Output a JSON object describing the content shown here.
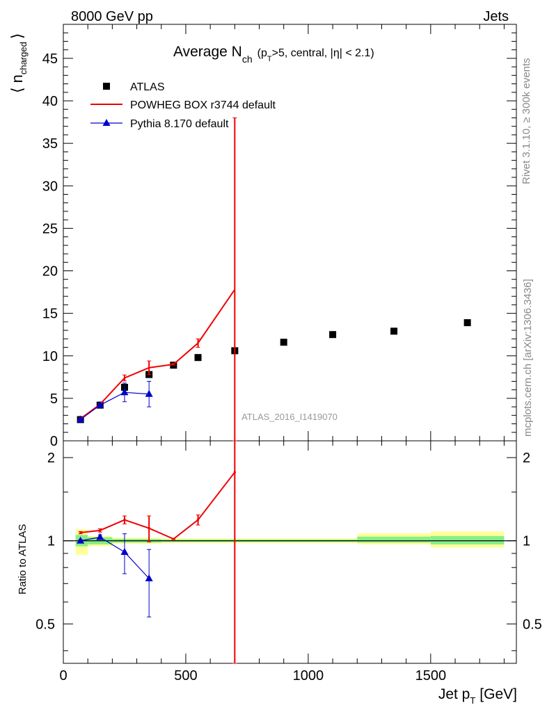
{
  "header": {
    "left": "8000 GeV pp",
    "right": "Jets"
  },
  "side_labels": {
    "rivet": "Rivet 3.1.10, ≥ 300k events",
    "mcplots": "mcplots.cern.ch [arXiv:1306.3436]"
  },
  "title": {
    "main": "Average N",
    "main_sub": "ch",
    "cond_open": "(p",
    "cond_sub": "T",
    "cond_rest": ">5, central, |η| < 2.1)"
  },
  "watermark": "ATLAS_2016_I1419070",
  "axis_labels": {
    "y_main_bracket_left": "⟨",
    "y_main_n": "n",
    "y_main_sub": "charged",
    "y_main_bracket_right": "⟩",
    "y_ratio": "Ratio to ATLAS",
    "x_main": "Jet p",
    "x_sub": "T",
    "x_unit": "[GeV]"
  },
  "legend": [
    {
      "label": "ATLAS",
      "color": "#000000",
      "marker": "square"
    },
    {
      "label": "POWHEG BOX r3744 default",
      "color": "#ee0000",
      "marker": "line"
    },
    {
      "label": "Pythia 8.170 default",
      "color": "#0000cc",
      "marker": "triangle"
    }
  ],
  "ticks": {
    "main_y": [
      "0",
      "5",
      "10",
      "15",
      "20",
      "25",
      "30",
      "35",
      "40",
      "45"
    ],
    "ratio_y": [
      "0.5",
      "1",
      "2"
    ],
    "x": [
      "0",
      "500",
      "1000",
      "1500"
    ]
  },
  "chart_data": {
    "type": "line",
    "x_unit": "GeV",
    "xlim": [
      0,
      1850
    ],
    "main": {
      "ylim": [
        0,
        49
      ],
      "series": [
        {
          "name": "ATLAS",
          "type": "scatter",
          "x": [
            70,
            150,
            250,
            350,
            450,
            550,
            700,
            900,
            1100,
            1350,
            1650
          ],
          "y": [
            2.5,
            4.2,
            6.3,
            7.8,
            8.9,
            9.8,
            10.6,
            11.6,
            12.5,
            12.9,
            13.9
          ]
        },
        {
          "name": "POWHEG BOX r3744 default",
          "type": "line",
          "x": [
            70,
            150,
            250,
            350,
            450,
            550,
            700
          ],
          "y": [
            2.6,
            4.3,
            7.4,
            8.6,
            9.0,
            11.5,
            17.8
          ],
          "yerr": [
            0.1,
            0.1,
            0.35,
            0.8,
            0.1,
            0.5,
            20.5
          ]
        },
        {
          "name": "Pythia 8.170 default",
          "type": "line",
          "x": [
            70,
            150,
            250,
            350
          ],
          "y": [
            2.5,
            4.2,
            5.7,
            5.5
          ],
          "yerr": [
            0.1,
            0.15,
            1.1,
            1.5
          ]
        }
      ]
    },
    "ratio": {
      "scale": "log",
      "ylim": [
        0.36,
        2.3
      ],
      "reference": 1,
      "bands": [
        {
          "x0": 50,
          "x1": 100,
          "inner": [
            0.955,
            1.05
          ],
          "outer": [
            0.89,
            1.1
          ]
        },
        {
          "x0": 100,
          "x1": 200,
          "inner": [
            0.97,
            1.03
          ],
          "outer": [
            0.955,
            1.04
          ]
        },
        {
          "x0": 200,
          "x1": 400,
          "inner": [
            0.985,
            1.015
          ],
          "outer": [
            0.975,
            1.025
          ]
        },
        {
          "x0": 400,
          "x1": 1200,
          "inner": [
            0.99,
            1.01
          ],
          "outer": [
            0.98,
            1.02
          ]
        },
        {
          "x0": 1200,
          "x1": 1500,
          "inner": [
            0.985,
            1.035
          ],
          "outer": [
            0.97,
            1.065
          ]
        },
        {
          "x0": 1500,
          "x1": 1800,
          "inner": [
            0.97,
            1.04
          ],
          "outer": [
            0.945,
            1.08
          ]
        }
      ],
      "series": [
        {
          "name": "POWHEG BOX r3744 default",
          "x": [
            70,
            150,
            250,
            350,
            450,
            550,
            700
          ],
          "y": [
            1.07,
            1.09,
            1.19,
            1.11,
            1.015,
            1.19,
            1.77
          ],
          "yerr": [
            0.01,
            0.015,
            0.04,
            0.12,
            0.005,
            0.05,
            2.5
          ]
        },
        {
          "name": "Pythia 8.170 default",
          "x": [
            70,
            150,
            250,
            350
          ],
          "y": [
            1.0,
            1.03,
            0.91,
            0.73
          ],
          "yerr": [
            0.01,
            0.02,
            0.15,
            0.2
          ]
        }
      ]
    }
  }
}
